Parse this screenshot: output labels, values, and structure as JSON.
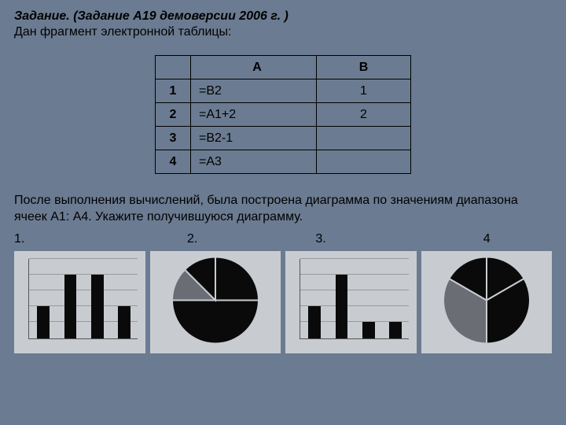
{
  "title": "Задание. (Задание А19 демоверсии 2006 г. )",
  "subtitle": "Дан фрагмент электронной таблицы:",
  "table": {
    "headers": {
      "a": "A",
      "b": "B"
    },
    "rows": [
      {
        "n": "1",
        "a": "=B2",
        "b": "1"
      },
      {
        "n": "2",
        "a": "=A1+2",
        "b": "2"
      },
      {
        "n": "3",
        "a": "=B2-1",
        "b": ""
      },
      {
        "n": "4",
        "a": "=A3",
        "b": ""
      }
    ]
  },
  "description": "После выполнения вычислений, была построена диаграмма  по значениям диапазона ячеек А1: А4. Укажите получившуюся диаграмму.",
  "options": {
    "o1": "1.",
    "o2": "2.",
    "o3": "3.",
    "o4": "4"
  },
  "charts": {
    "bg": "#c8ccd0",
    "bar_color": "#0a0a0a",
    "grid_color": "#999999",
    "axis_color": "#555555",
    "chart1": {
      "type": "bar",
      "values": [
        2,
        4,
        4,
        2
      ],
      "ymax": 5,
      "gridlines": 5
    },
    "chart2": {
      "type": "pie",
      "slices": [
        {
          "value": 2,
          "color": "#0a0a0a"
        },
        {
          "value": 4,
          "color": "#0a0a0a"
        },
        {
          "value": 1,
          "color": "#6a6e74"
        },
        {
          "value": 1,
          "color": "#0a0a0a"
        }
      ],
      "separator_color": "#c8ccd0",
      "start_angle": -90
    },
    "chart3": {
      "type": "bar",
      "values": [
        2,
        4,
        1,
        1
      ],
      "ymax": 5,
      "gridlines": 5
    },
    "chart4": {
      "type": "pie",
      "slices": [
        {
          "value": 2,
          "color": "#0a0a0a"
        },
        {
          "value": 4,
          "color": "#0a0a0a"
        },
        {
          "value": 4,
          "color": "#6a6e74"
        },
        {
          "value": 2,
          "color": "#0a0a0a"
        }
      ],
      "separator_color": "#c8ccd0",
      "start_angle": -90
    }
  }
}
